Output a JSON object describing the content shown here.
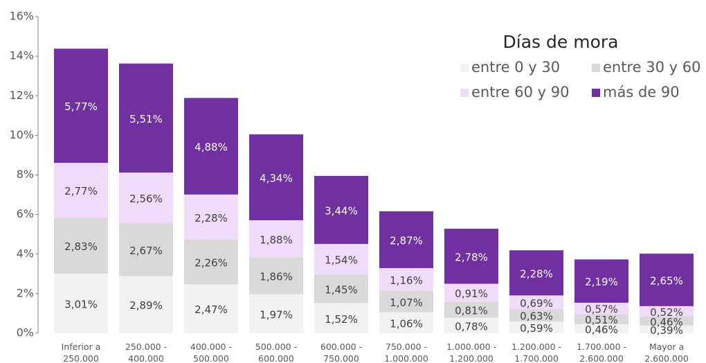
{
  "chart_data": {
    "type": "stacked_bar",
    "legend_title": "Días de mora",
    "legend_position": "upper right",
    "categories": [
      "Inferior a 250.000",
      "250.000 - 400.000",
      "400.000 - 500.000",
      "500.000 - 600.000",
      "600.000 - 750.000",
      "750.000 - 1.000.000",
      "1.000.000 - 1.200.000",
      "1.200.000 - 1.700.000",
      "1.700.000 - 2.600.000",
      "Mayor a 2.600.000"
    ],
    "series": [
      {
        "name": "entre 0 y 30",
        "color": "#f2f2f2",
        "values": [
          3.01,
          2.89,
          2.47,
          1.97,
          1.52,
          1.06,
          0.78,
          0.59,
          0.46,
          0.39
        ],
        "value_labels": [
          "3,01%",
          "2,89%",
          "2,47%",
          "1,97%",
          "1,52%",
          "1,06%",
          "0,78%",
          "0,59%",
          "0,46%",
          "0,39%"
        ]
      },
      {
        "name": "entre 30 y 60",
        "color": "#d9d9d9",
        "values": [
          2.83,
          2.67,
          2.26,
          1.86,
          1.45,
          1.07,
          0.81,
          0.63,
          0.51,
          0.46
        ],
        "value_labels": [
          "2,83%",
          "2,67%",
          "2,26%",
          "1,86%",
          "1,45%",
          "1,07%",
          "0,81%",
          "0,63%",
          "0,51%",
          "0,46%"
        ]
      },
      {
        "name": "entre 60 y 90",
        "color": "#f0dbfb",
        "values": [
          2.77,
          2.56,
          2.28,
          1.88,
          1.54,
          1.16,
          0.91,
          0.69,
          0.57,
          0.52
        ],
        "value_labels": [
          "2,77%",
          "2,56%",
          "2,28%",
          "1,88%",
          "1,54%",
          "1,16%",
          "0,91%",
          "0,69%",
          "0,57%",
          "0,52%"
        ]
      },
      {
        "name": "más de 90",
        "color": "#7030a0",
        "values": [
          5.77,
          5.51,
          4.88,
          4.34,
          3.44,
          2.87,
          2.78,
          2.28,
          2.19,
          2.65
        ],
        "value_labels": [
          "5,77%",
          "5,51%",
          "4,88%",
          "4,34%",
          "3,44%",
          "2,87%",
          "2,78%",
          "2,28%",
          "2,19%",
          "2,65%"
        ]
      }
    ],
    "ylim": [
      0,
      16
    ],
    "yticks": [
      {
        "value": 0,
        "label": "0%"
      },
      {
        "value": 2,
        "label": "2%"
      },
      {
        "value": 4,
        "label": "4%"
      },
      {
        "value": 6,
        "label": "6%"
      },
      {
        "value": 8,
        "label": "8%"
      },
      {
        "value": 10,
        "label": "10%"
      },
      {
        "value": 12,
        "label": "12%"
      },
      {
        "value": 14,
        "label": "14%"
      },
      {
        "value": 16,
        "label": "16%"
      }
    ],
    "grid": false
  }
}
